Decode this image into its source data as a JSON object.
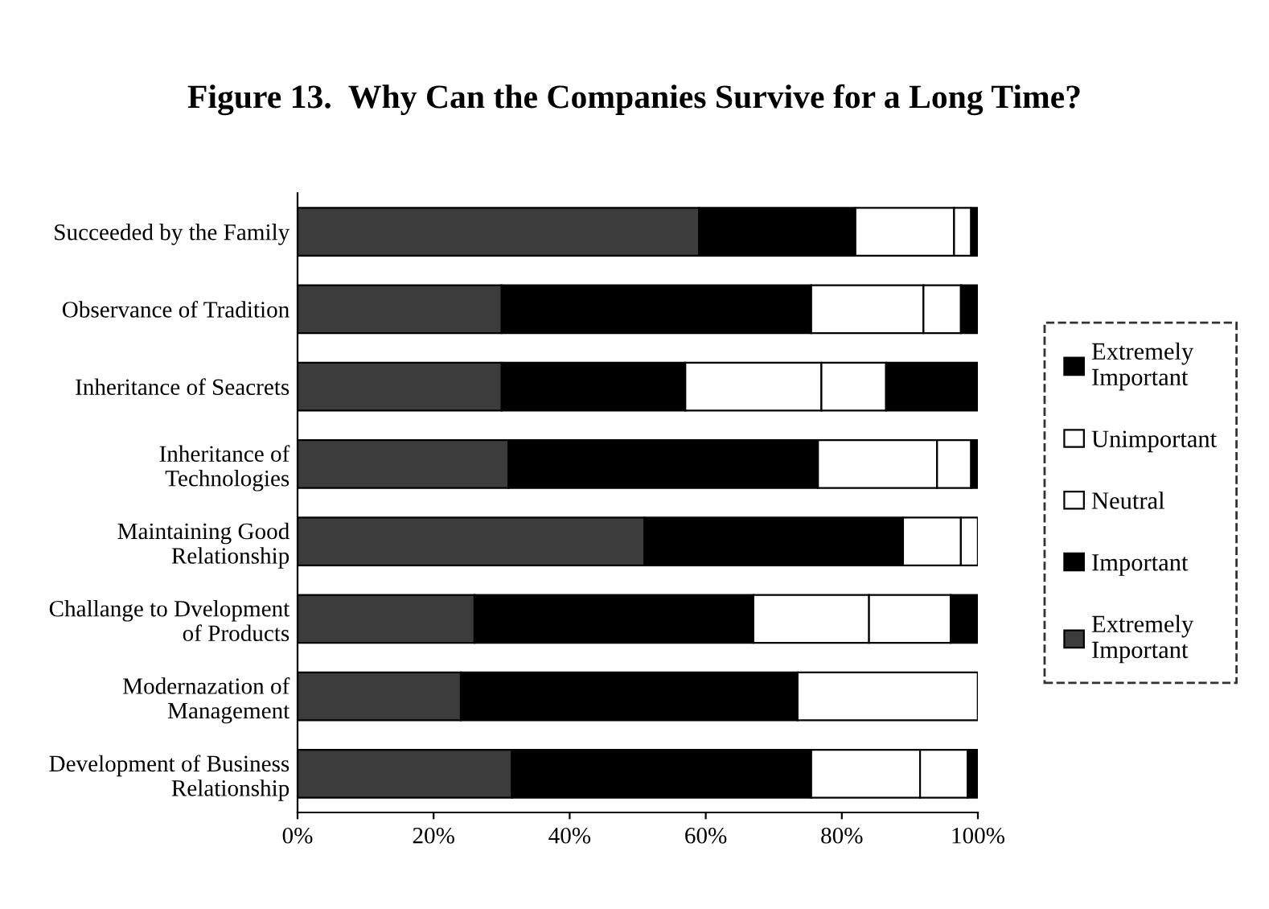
{
  "chart_data": {
    "type": "bar",
    "orientation": "horizontal",
    "stacked": true,
    "title": "Figure 13.  Why Can the Companies Survive for a Long Time?",
    "categories": [
      "Succeeded by the Family",
      "Observance of Tradition",
      "Inheritance of Seacrets",
      "Inheritance of\nTechnologies",
      "Maintaining Good\nRelationship",
      "Challange to Dvelopment\nof Products",
      "Modernazation of\nManagement",
      "Development of Business\nRelationship"
    ],
    "series": [
      {
        "name": "Extremely\nImportant",
        "color": "#3c3c3c",
        "values": [
          59,
          30,
          30,
          31,
          51,
          26,
          24,
          31.5
        ]
      },
      {
        "name": "Important",
        "color": "#000000",
        "values": [
          23,
          45.5,
          27,
          45.5,
          38,
          41,
          49.5,
          44
        ]
      },
      {
        "name": "Neutral",
        "color": "#ffffff",
        "values": [
          14.5,
          16.5,
          20,
          17.5,
          8.5,
          17,
          26.5,
          16
        ]
      },
      {
        "name": "Unimportant",
        "color": "#ffffff",
        "values": [
          2.5,
          5.5,
          9.5,
          5,
          2.5,
          12,
          0,
          7
        ]
      },
      {
        "name": "Extremely\nImportant",
        "color": "#000000",
        "values": [
          1,
          2.5,
          13.5,
          1,
          0,
          4,
          0,
          1.5
        ]
      }
    ],
    "xlim": [
      0,
      100
    ],
    "xticks": [
      {
        "value": 0,
        "label": "0%"
      },
      {
        "value": 20,
        "label": "20%"
      },
      {
        "value": 40,
        "label": "40%"
      },
      {
        "value": 60,
        "label": "60%"
      },
      {
        "value": 80,
        "label": "80%"
      },
      {
        "value": 100,
        "label": "100%"
      }
    ],
    "grid": false,
    "legend": "right"
  }
}
